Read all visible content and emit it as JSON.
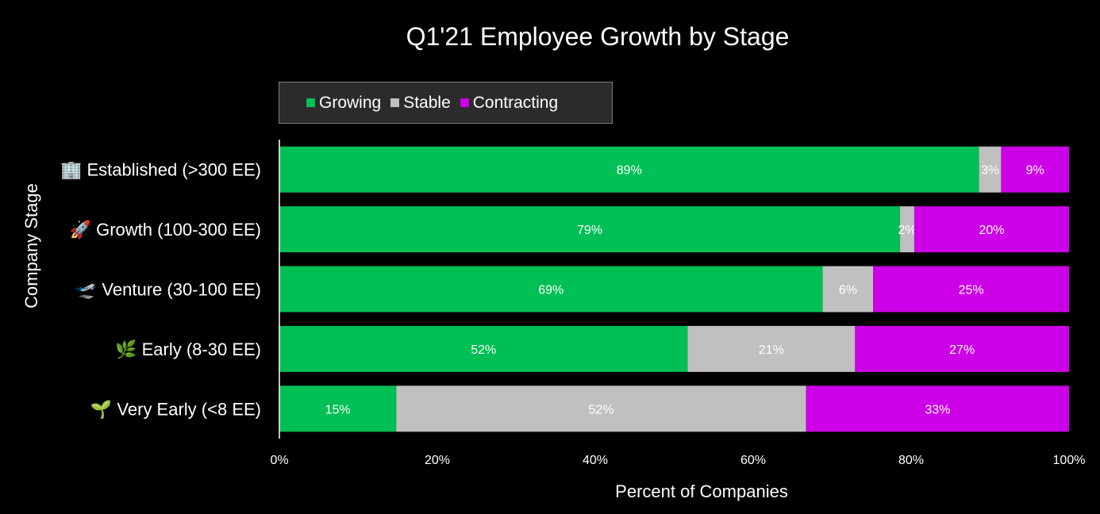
{
  "chart_data": {
    "type": "bar",
    "orientation": "horizontal",
    "stacked": true,
    "title": "Q1'21 Employee Growth by Stage",
    "xlabel": "Percent of Companies",
    "ylabel": "Company Stage",
    "xlim": [
      0,
      100
    ],
    "x_ticks": [
      "0%",
      "20%",
      "40%",
      "60%",
      "80%",
      "100%"
    ],
    "legend_position": "top",
    "grid": false,
    "categories": [
      {
        "emoji": "🏢",
        "label": "Established (>300 EE)"
      },
      {
        "emoji": "🚀",
        "label": "Growth (100-300 EE)"
      },
      {
        "emoji": "🛫",
        "label": "Venture (30-100 EE)"
      },
      {
        "emoji": "🌿",
        "label": "Early (8-30 EE)"
      },
      {
        "emoji": "🌱",
        "label": "Very Early (<8 EE)"
      }
    ],
    "series": [
      {
        "name": "Growing",
        "color": "#00bf55",
        "values": [
          88.6,
          78.6,
          68.8,
          51.7,
          14.8
        ],
        "labels": [
          "89%",
          "79%",
          "69%",
          "52%",
          "15%"
        ]
      },
      {
        "name": "Stable",
        "color": "#c0c0c0",
        "values": [
          2.8,
          1.8,
          6.4,
          21.2,
          51.9
        ],
        "labels": [
          "3%",
          "2%",
          "6%",
          "21%",
          "52%"
        ]
      },
      {
        "name": "Contracting",
        "color": "#cc00e6",
        "values": [
          8.6,
          19.6,
          24.8,
          27.1,
          33.3
        ],
        "labels": [
          "9%",
          "20%",
          "25%",
          "27%",
          "33%"
        ]
      }
    ]
  }
}
